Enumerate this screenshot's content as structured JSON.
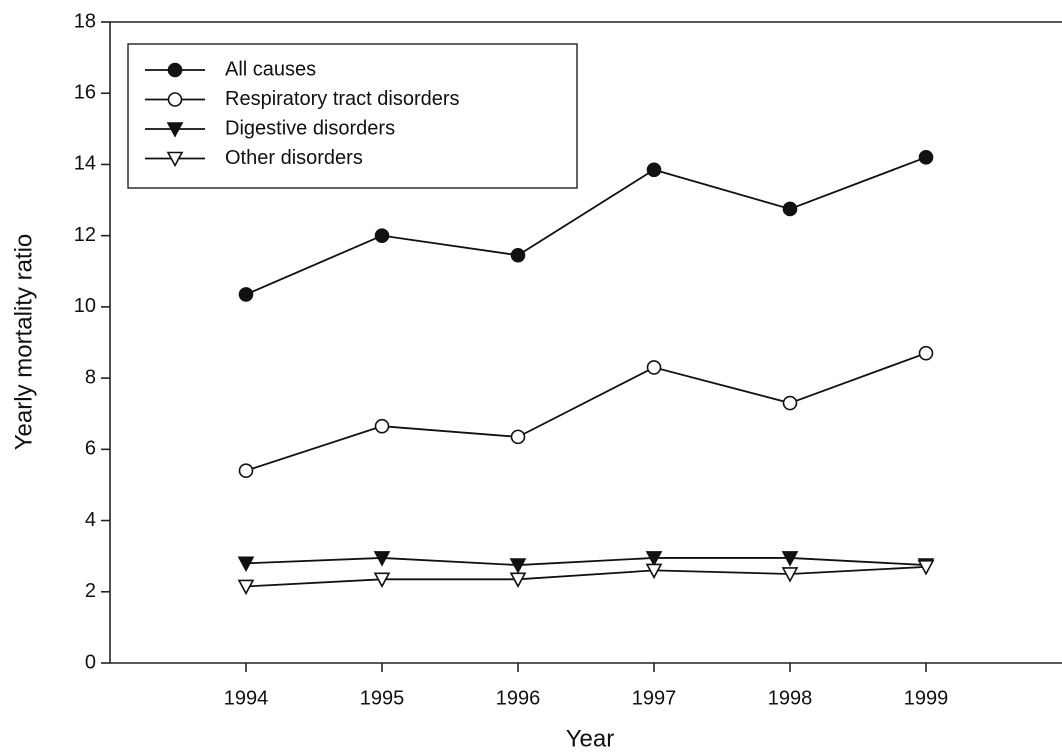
{
  "chart_data": {
    "type": "line",
    "x_label": "Year",
    "y_label": "Yearly mortality ratio",
    "x": [
      1994,
      1995,
      1996,
      1997,
      1998,
      1999
    ],
    "xlim": [
      1993,
      2000
    ],
    "xticks": [
      1994,
      1995,
      1996,
      1997,
      1998,
      1999
    ],
    "ylim": [
      0,
      18
    ],
    "yticks": [
      0,
      2,
      4,
      6,
      8,
      10,
      12,
      14,
      16,
      18
    ],
    "grid": false,
    "legend": "upper left",
    "series": [
      {
        "name": "All causes",
        "color": "#111111",
        "marker": "circle",
        "filled": true,
        "values": [
          10.35,
          12.0,
          11.45,
          13.85,
          12.75,
          14.2
        ]
      },
      {
        "name": "Respiratory tract disorders",
        "color": "#111111",
        "marker": "circle",
        "filled": false,
        "values": [
          5.4,
          6.65,
          6.35,
          8.3,
          7.3,
          8.7
        ]
      },
      {
        "name": "Digestive disorders",
        "color": "#111111",
        "marker": "triangle-down",
        "filled": true,
        "values": [
          2.8,
          2.95,
          2.75,
          2.95,
          2.95,
          2.75
        ]
      },
      {
        "name": "Other disorders",
        "color": "#111111",
        "marker": "triangle-down",
        "filled": false,
        "values": [
          2.15,
          2.35,
          2.35,
          2.6,
          2.5,
          2.7
        ]
      }
    ]
  }
}
